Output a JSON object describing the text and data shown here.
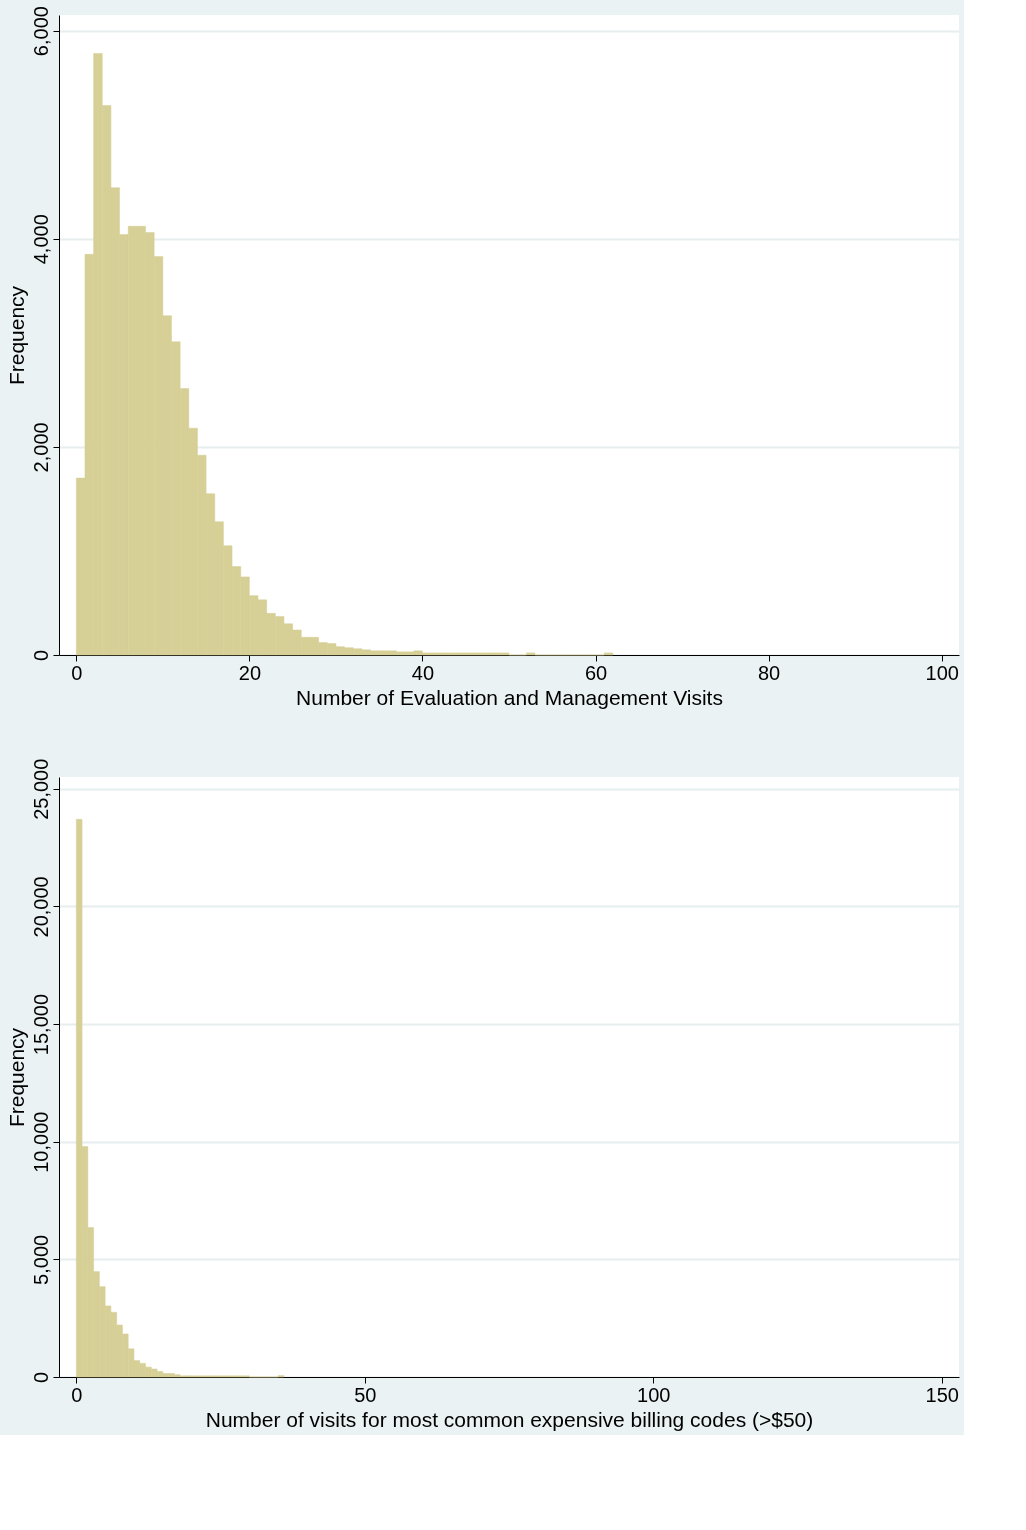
{
  "chart_data": [
    {
      "type": "histogram",
      "xlabel": "Number of Evaluation and Management Visits",
      "ylabel": "Frequency",
      "color": "#d6cf96",
      "grid": "y",
      "bins": [
        0,
        1,
        2,
        3,
        4,
        5,
        6,
        7,
        8,
        9,
        10,
        11,
        12,
        13,
        14,
        15,
        16,
        17,
        18,
        19,
        20,
        21,
        22,
        23,
        24,
        25,
        26,
        27,
        28,
        29,
        30,
        31,
        32,
        33,
        34,
        35,
        36,
        37,
        38,
        39,
        40,
        41,
        42,
        43,
        44,
        45,
        46,
        47,
        48,
        49,
        50,
        51,
        52,
        53,
        54,
        55,
        56,
        57,
        58,
        59,
        60,
        61,
        62
      ],
      "values": [
        1700,
        3850,
        5780,
        5280,
        4490,
        4040,
        4120,
        4120,
        4060,
        3830,
        3260,
        3010,
        2560,
        2180,
        1920,
        1550,
        1280,
        1050,
        850,
        750,
        570,
        530,
        400,
        370,
        300,
        240,
        170,
        170,
        120,
        110,
        80,
        70,
        60,
        50,
        40,
        40,
        40,
        30,
        30,
        40,
        20,
        20,
        20,
        20,
        20,
        20,
        20,
        20,
        20,
        20,
        0,
        0,
        20,
        0,
        0,
        0,
        0,
        0,
        0,
        0,
        0,
        20
      ],
      "xlim": [
        -2,
        102
      ],
      "xticks": [
        0,
        20,
        40,
        60,
        80,
        100
      ],
      "ylim": [
        0,
        6150
      ],
      "yticks": [
        {
          "value": 0,
          "label": "0"
        },
        {
          "value": 2000,
          "label": "2,000"
        },
        {
          "value": 4000,
          "label": "4,000"
        },
        {
          "value": 6000,
          "label": "6,000"
        }
      ]
    },
    {
      "type": "histogram",
      "xlabel": "Number of visits for most common expensive billing codes (>$50)",
      "ylabel": "Frequency",
      "color": "#d6cf96",
      "grid": "y",
      "bins": [
        0,
        1,
        2,
        3,
        4,
        5,
        6,
        7,
        8,
        9,
        10,
        11,
        12,
        13,
        14,
        15,
        16,
        17,
        18,
        19,
        20,
        21,
        22,
        23,
        24,
        25,
        26,
        27,
        28,
        29,
        30,
        31,
        32,
        33,
        34,
        35,
        36
      ],
      "values": [
        23700,
        9800,
        6350,
        4480,
        3840,
        3020,
        2750,
        2210,
        1830,
        1200,
        700,
        580,
        420,
        340,
        240,
        150,
        150,
        100,
        50,
        50,
        50,
        50,
        50,
        50,
        50,
        50,
        50,
        50,
        50,
        50,
        0,
        0,
        0,
        0,
        0,
        60
      ],
      "xlim": [
        -3,
        153
      ],
      "xticks": [
        0,
        50,
        100,
        150
      ],
      "ylim": [
        0,
        25500
      ],
      "yticks": [
        {
          "value": 0,
          "label": "0"
        },
        {
          "value": 5000,
          "label": "5,000"
        },
        {
          "value": 10000,
          "label": "10,000"
        },
        {
          "value": 15000,
          "label": "15,000"
        },
        {
          "value": 20000,
          "label": "20,000"
        },
        {
          "value": 25000,
          "label": "25,000"
        }
      ]
    }
  ]
}
